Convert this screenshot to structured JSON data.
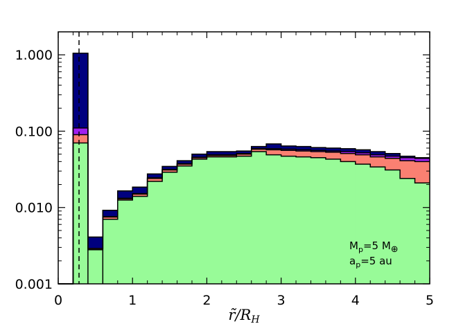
{
  "chart_data": {
    "type": "bar",
    "stacked": true,
    "x_edges": [
      0.0,
      0.2,
      0.4,
      0.6,
      0.8,
      1.0,
      1.2,
      1.4,
      1.6,
      1.8,
      2.0,
      2.2,
      2.4,
      2.6,
      2.8,
      3.0,
      3.2,
      3.4,
      3.6,
      3.8,
      4.0,
      4.2,
      4.4,
      4.6,
      4.8,
      5.0
    ],
    "series": [
      {
        "color": "#98fb98",
        "values": [
          0.001,
          0.07,
          0.0028,
          0.007,
          0.0125,
          0.014,
          0.022,
          0.029,
          0.035,
          0.043,
          0.046,
          0.046,
          0.047,
          0.054,
          0.049,
          0.047,
          0.046,
          0.045,
          0.043,
          0.04,
          0.037,
          0.034,
          0.031,
          0.024,
          0.021
        ]
      },
      {
        "color": "#fa8072",
        "values": [
          0.001,
          0.09,
          0.0029,
          0.0075,
          0.013,
          0.015,
          0.024,
          0.031,
          0.037,
          0.045,
          0.048,
          0.048,
          0.05,
          0.058,
          0.057,
          0.056,
          0.055,
          0.054,
          0.053,
          0.051,
          0.049,
          0.046,
          0.044,
          0.041,
          0.04
        ]
      },
      {
        "color": "#a020f0",
        "values": [
          0.001,
          0.11,
          0.0029,
          0.0076,
          0.0132,
          0.0152,
          0.0245,
          0.0315,
          0.0375,
          0.0455,
          0.049,
          0.049,
          0.051,
          0.059,
          0.059,
          0.058,
          0.057,
          0.056,
          0.055,
          0.054,
          0.052,
          0.049,
          0.047,
          0.045,
          0.044
        ]
      },
      {
        "color": "#00007f",
        "values": [
          0.001,
          1.05,
          0.0041,
          0.0092,
          0.0165,
          0.0185,
          0.0275,
          0.0345,
          0.041,
          0.05,
          0.054,
          0.054,
          0.055,
          0.063,
          0.068,
          0.064,
          0.063,
          0.061,
          0.06,
          0.059,
          0.057,
          0.054,
          0.051,
          0.047,
          0.045
        ]
      }
    ],
    "xlim": [
      0,
      5
    ],
    "ylim": [
      0.001,
      2.0
    ],
    "yscale": "log",
    "xticks": [
      0,
      1,
      2,
      3,
      4,
      5
    ],
    "xtick_labels": [
      "0",
      "1",
      "2",
      "3",
      "4",
      "5"
    ],
    "yticks": [
      0.001,
      0.01,
      0.1,
      1.0
    ],
    "ytick_labels": [
      "0.001",
      "0.010",
      "0.100",
      "1.000"
    ],
    "vline_x": 0.28,
    "xlabel": "r̃/R",
    "xlabel_sub": "H",
    "annotation": {
      "line1_base": "M",
      "line1_sub": "p",
      "line1_rest": "=5 M",
      "line1_symbol": "⊕",
      "line2_base": "a",
      "line2_sub": "p",
      "line2_rest": "=5 au"
    }
  }
}
